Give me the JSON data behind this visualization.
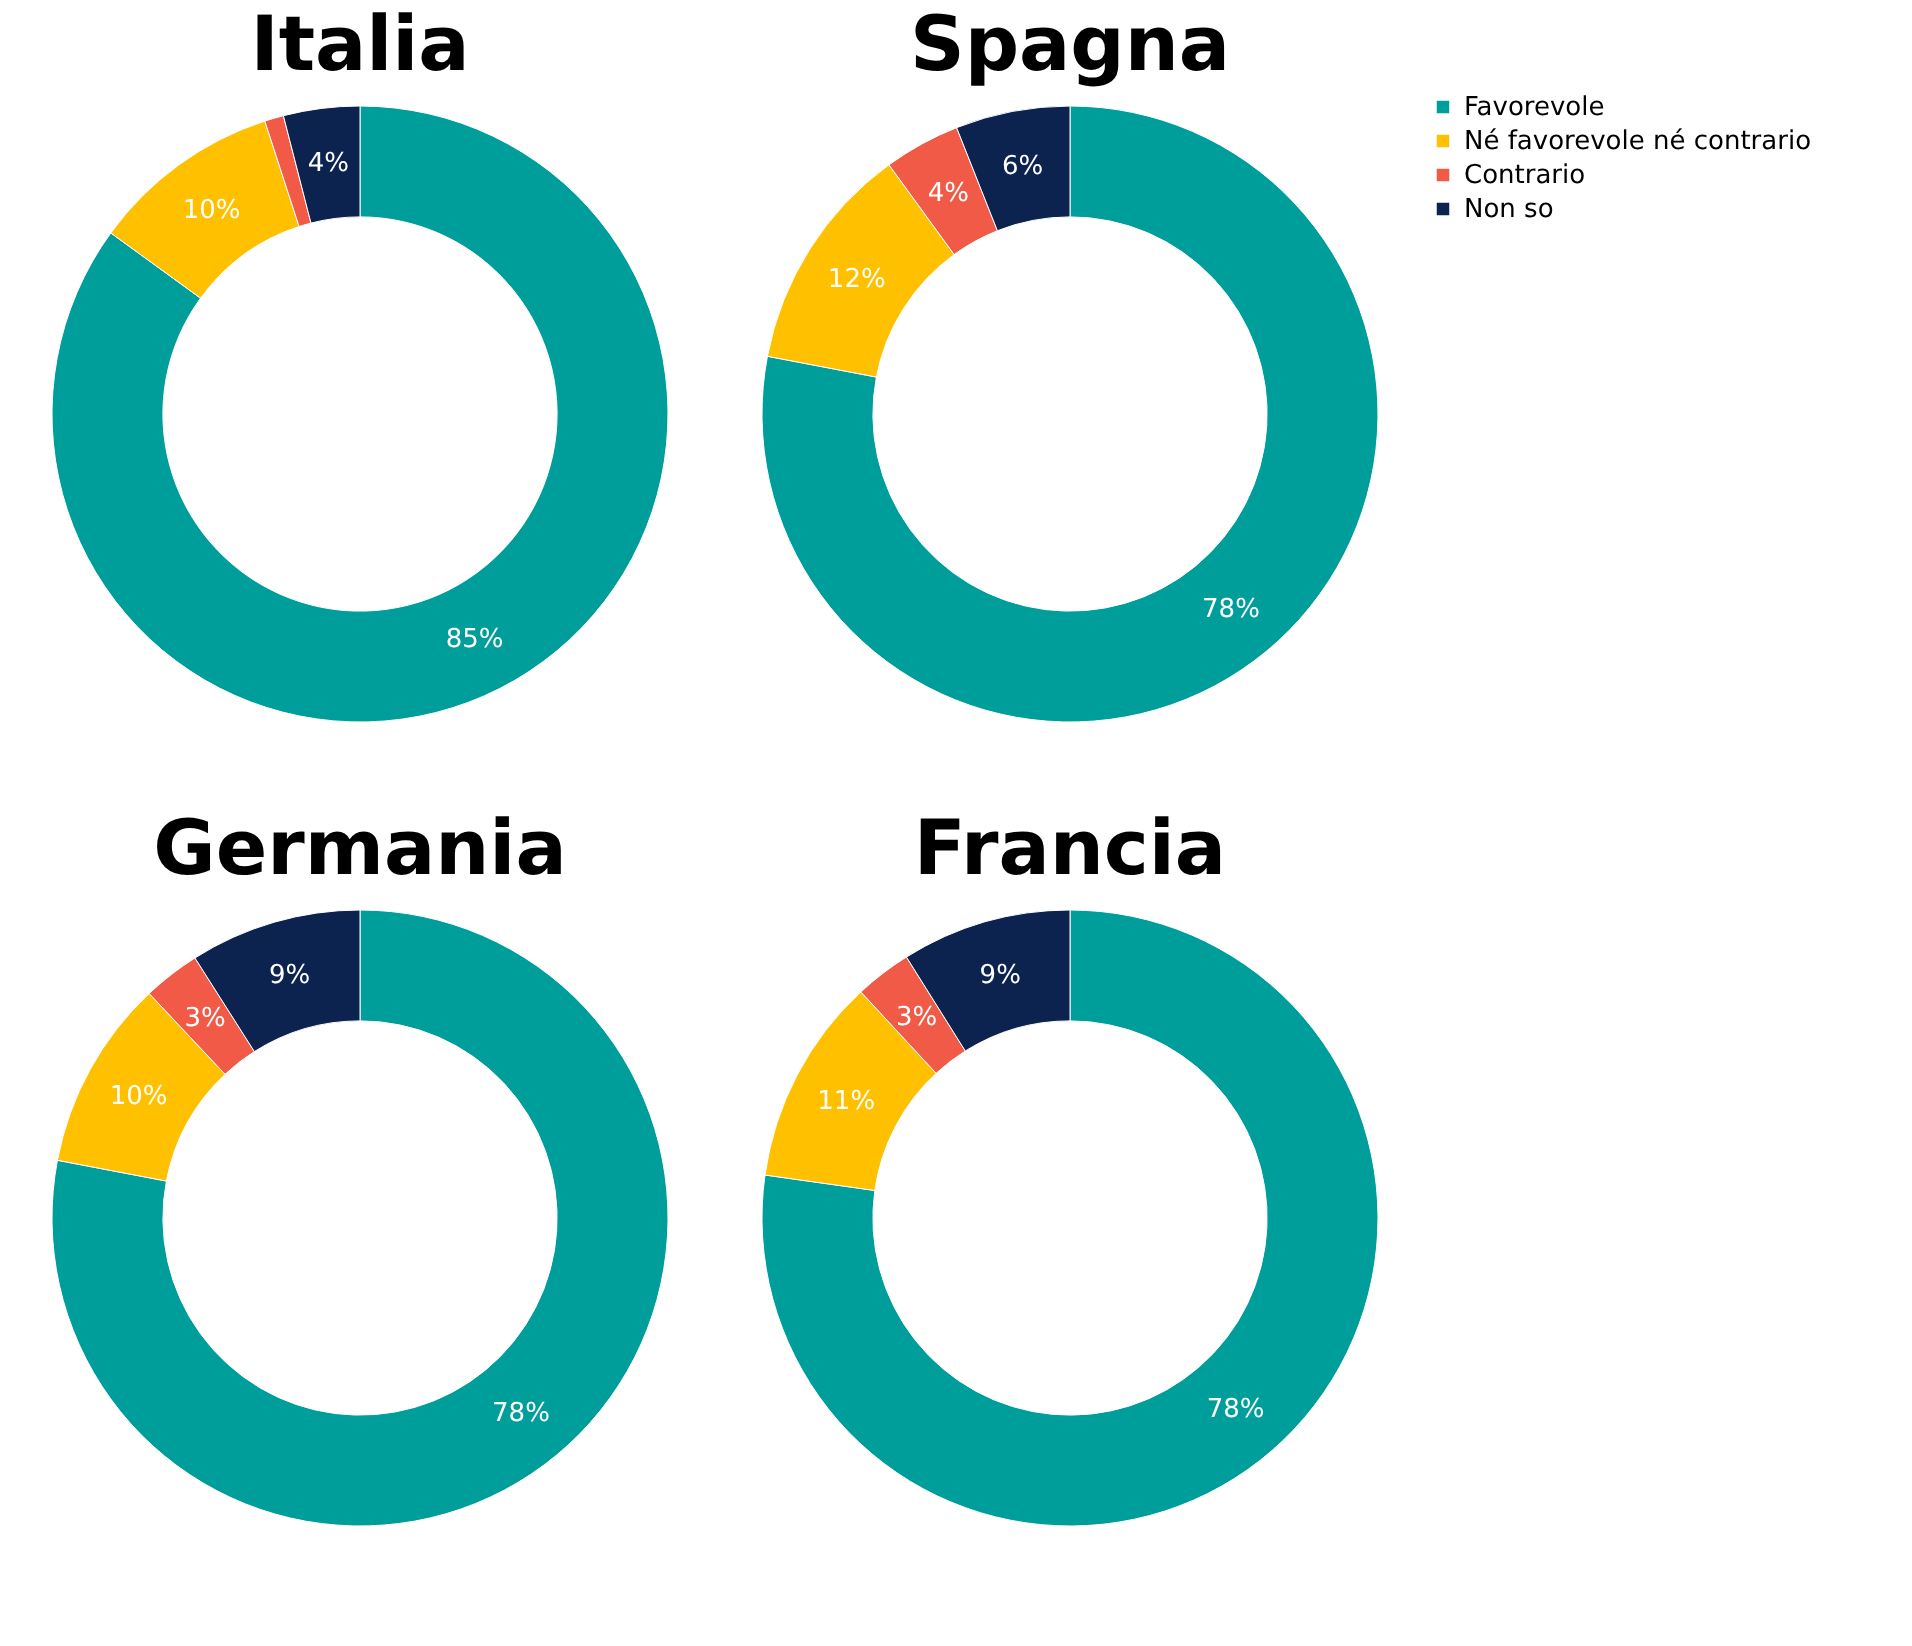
{
  "chart_data": [
    {
      "type": "donut",
      "title": "Italia",
      "categories": [
        null,
        null,
        null,
        null
      ],
      "values": [
        85,
        10,
        1,
        4
      ],
      "value_labels": [
        "85%",
        "10%",
        null,
        "4%"
      ],
      "colors": [
        "#009e9a",
        "#ffc000",
        "#f05a46",
        "#0c2350"
      ],
      "legend": false
    },
    {
      "type": "donut",
      "title": "Spagna",
      "categories": [
        "Favorevole",
        "Né favorevole né contrario",
        "Contrario",
        "Non so"
      ],
      "values": [
        78,
        12,
        4,
        6
      ],
      "value_labels": [
        "78%",
        "12%",
        "4%",
        "6%"
      ],
      "colors": [
        "#009e9a",
        "#ffc000",
        "#f05a46",
        "#0c2350"
      ],
      "legend": "right"
    },
    {
      "type": "donut",
      "title": "Germania",
      "categories": [
        null,
        null,
        null,
        null
      ],
      "values": [
        78,
        10,
        3,
        9
      ],
      "value_labels": [
        "78%",
        "10%",
        "3%",
        "9%"
      ],
      "colors": [
        "#009e9a",
        "#ffc000",
        "#f05a46",
        "#0c2350"
      ],
      "legend": false
    },
    {
      "type": "donut",
      "title": "Francia",
      "categories": [
        null,
        null,
        null,
        null
      ],
      "values": [
        78,
        11,
        3,
        9
      ],
      "value_labels": [
        "78%",
        "11%",
        "3%",
        "9%"
      ],
      "colors": [
        "#009e9a",
        "#ffc000",
        "#f05a46",
        "#0c2350"
      ],
      "legend": false
    }
  ]
}
